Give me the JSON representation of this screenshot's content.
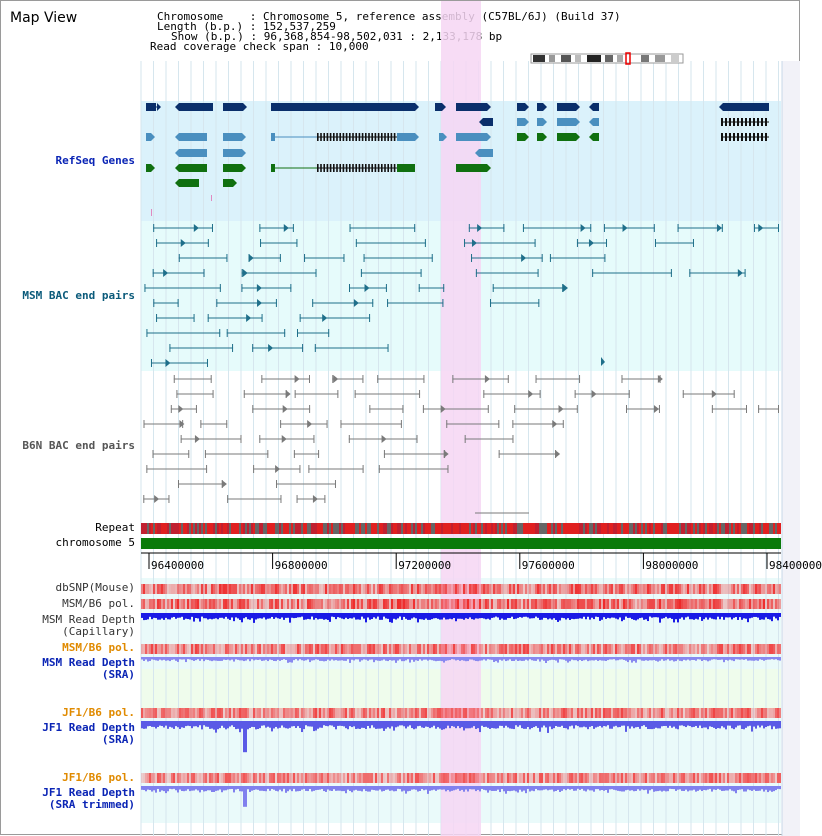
{
  "view_title": "Map View",
  "info": {
    "chromosome_label": "Chromosome",
    "chromosome_value": "Chromosome 5, reference assembly (C57BL/6J) (Build 37)",
    "length_label": "Length (b.p.)",
    "length_value": "152,537,259",
    "show_label": "Show (b.p.)",
    "show_value": "96,368,854-98,502,031 : 2,133,178 bp",
    "coverage_label": "Read coverage check span",
    "coverage_value": "10,000"
  },
  "tracks": {
    "refseq": "RefSeq Genes",
    "msm_bac": "MSM BAC end pairs",
    "b6n_bac": "B6N BAC end pairs",
    "repeat": "Repeat",
    "chromosome": "chromosome 5",
    "dbsnp": "dbSNP(Mouse)",
    "msm_b6_pol": "MSM/B6 pol.",
    "msm_depth_cap_1": "MSM Read Depth",
    "msm_depth_cap_2": "(Capillary)",
    "msm_b6_pol_2": "MSM/B6 pol.",
    "msm_depth_sra_1": "MSM Read Depth",
    "msm_depth_sra_2": "(SRA)",
    "jf1_b6_pol": "JF1/B6 pol.",
    "jf1_depth_sra_1": "JF1 Read Depth",
    "jf1_depth_sra_2": "(SRA)",
    "jf1_b6_pol_2": "JF1/B6 pol.",
    "jf1_depth_trim_1": "JF1 Read Depth",
    "jf1_depth_trim_2": "(SRA trimmed)"
  },
  "axis_ticks": [
    "96400000",
    "96800000",
    "97200000",
    "97600000",
    "98000000",
    "98400000"
  ],
  "colors": {
    "refseq_bg": "#dbf2fb",
    "msm_bg": "#e6fbfb",
    "b6n_bg": "#ffffff",
    "highlight": "#f6d6f3",
    "gene_dark": "#0a2f6b",
    "gene_light": "#4a8fbf",
    "gene_green": "#107010",
    "msm_line": "#1f6f8a",
    "b6n_line": "#7a7a7a",
    "chrom_bar": "#0a7a0a",
    "depth_blue": "#1a1ae6",
    "depth_light": "#8888f0",
    "pol_red": "#ee2a2a",
    "label_blue": "#0a24b5",
    "label_orange": "#e08a00",
    "label_teal": "#0a5a7a"
  }
}
